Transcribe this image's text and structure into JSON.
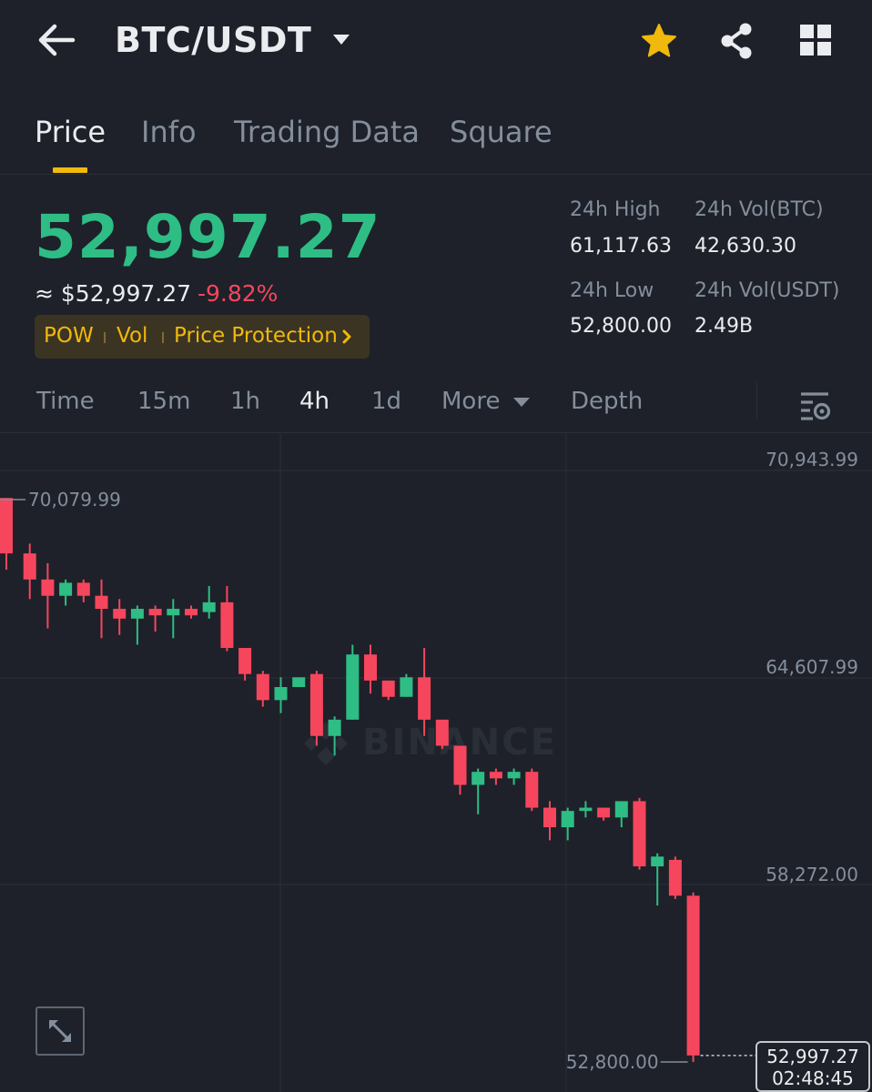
{
  "header": {
    "pair": "BTC/USDT",
    "back_icon": "arrow-left-icon",
    "star_icon": "star-icon",
    "share_icon": "share-icon",
    "grid_icon": "grid-icon"
  },
  "tabs": [
    {
      "label": "Price",
      "active": true
    },
    {
      "label": "Info",
      "active": false
    },
    {
      "label": "Trading Data",
      "active": false
    },
    {
      "label": "Square",
      "active": false
    }
  ],
  "price": {
    "last": "52,997.27",
    "usd": "≈ $52,997.27",
    "change": "-9.82%"
  },
  "tags": [
    "POW",
    "Vol",
    "Price Protection"
  ],
  "stats": {
    "high_label": "24h High",
    "high_value": "61,117.63",
    "vol_btc_label": "24h Vol(BTC)",
    "vol_btc_value": "42,630.30",
    "low_label": "24h Low",
    "low_value": "52,800.00",
    "vol_usdt_label": "24h Vol(USDT)",
    "vol_usdt_value": "2.49B"
  },
  "intervals": {
    "items": [
      "Time",
      "15m",
      "1h",
      "4h",
      "1d",
      "More",
      "Depth"
    ],
    "active": "4h"
  },
  "colors": {
    "up": "#2ebd85",
    "down": "#f6465d",
    "accent": "#f0b90b",
    "background": "#1e2129"
  },
  "chart_data": {
    "type": "candlestick",
    "y_ticks": [
      "70,943.99",
      "64,607.99",
      "58,272.00"
    ],
    "ylim": [
      52500,
      71500
    ],
    "max_marker": "70,079.99",
    "min_marker": "52,800.00",
    "last_price": "52,997.27",
    "countdown": "02:48:45",
    "watermark": "BINANCE",
    "candles": [
      {
        "o": 70100,
        "c": 68400,
        "h": 70100,
        "l": 67900
      },
      {
        "o": 68400,
        "c": 67600,
        "h": 68700,
        "l": 67000
      },
      {
        "o": 67600,
        "c": 67100,
        "h": 68100,
        "l": 66100
      },
      {
        "o": 67100,
        "c": 67500,
        "h": 67600,
        "l": 66800
      },
      {
        "o": 67500,
        "c": 67100,
        "h": 67600,
        "l": 66900
      },
      {
        "o": 67100,
        "c": 66700,
        "h": 67600,
        "l": 65800
      },
      {
        "o": 66700,
        "c": 66400,
        "h": 67000,
        "l": 65900
      },
      {
        "o": 66400,
        "c": 66700,
        "h": 66800,
        "l": 65600
      },
      {
        "o": 66700,
        "c": 66500,
        "h": 66800,
        "l": 66000
      },
      {
        "o": 66500,
        "c": 66700,
        "h": 67000,
        "l": 65800
      },
      {
        "o": 66700,
        "c": 66500,
        "h": 66800,
        "l": 66400
      },
      {
        "o": 66600,
        "c": 66900,
        "h": 67400,
        "l": 66400
      },
      {
        "o": 66900,
        "c": 65500,
        "h": 67400,
        "l": 65400
      },
      {
        "o": 65500,
        "c": 64700,
        "h": 65500,
        "l": 64500
      },
      {
        "o": 64700,
        "c": 63900,
        "h": 64800,
        "l": 63700
      },
      {
        "o": 63900,
        "c": 64300,
        "h": 64600,
        "l": 63500
      },
      {
        "o": 64300,
        "c": 64600,
        "h": 64600,
        "l": 64300
      },
      {
        "o": 64700,
        "c": 62800,
        "h": 64800,
        "l": 62500
      },
      {
        "o": 62800,
        "c": 63300,
        "h": 63400,
        "l": 62200
      },
      {
        "o": 63300,
        "c": 65300,
        "h": 65600,
        "l": 63300
      },
      {
        "o": 65300,
        "c": 64500,
        "h": 65600,
        "l": 64100
      },
      {
        "o": 64500,
        "c": 64000,
        "h": 64500,
        "l": 63900
      },
      {
        "o": 64000,
        "c": 64600,
        "h": 64700,
        "l": 64000
      },
      {
        "o": 64600,
        "c": 63300,
        "h": 65500,
        "l": 62800
      },
      {
        "o": 63300,
        "c": 62500,
        "h": 63300,
        "l": 62400
      },
      {
        "o": 62500,
        "c": 61300,
        "h": 62500,
        "l": 61000
      },
      {
        "o": 61300,
        "c": 61700,
        "h": 61800,
        "l": 60400
      },
      {
        "o": 61700,
        "c": 61500,
        "h": 61800,
        "l": 61300
      },
      {
        "o": 61500,
        "c": 61700,
        "h": 61800,
        "l": 61300
      },
      {
        "o": 61700,
        "c": 60600,
        "h": 61800,
        "l": 60500
      },
      {
        "o": 60600,
        "c": 60000,
        "h": 60800,
        "l": 59600
      },
      {
        "o": 60000,
        "c": 60500,
        "h": 60600,
        "l": 59600
      },
      {
        "o": 60500,
        "c": 60600,
        "h": 60800,
        "l": 60300
      },
      {
        "o": 60600,
        "c": 60300,
        "h": 60600,
        "l": 60200
      },
      {
        "o": 60300,
        "c": 60800,
        "h": 60800,
        "l": 60000
      },
      {
        "o": 60800,
        "c": 58800,
        "h": 60900,
        "l": 58700
      },
      {
        "o": 58800,
        "c": 59100,
        "h": 59200,
        "l": 57600
      },
      {
        "o": 59000,
        "c": 57900,
        "h": 59100,
        "l": 57800
      },
      {
        "o": 57900,
        "c": 53000,
        "h": 58000,
        "l": 52800
      }
    ]
  }
}
